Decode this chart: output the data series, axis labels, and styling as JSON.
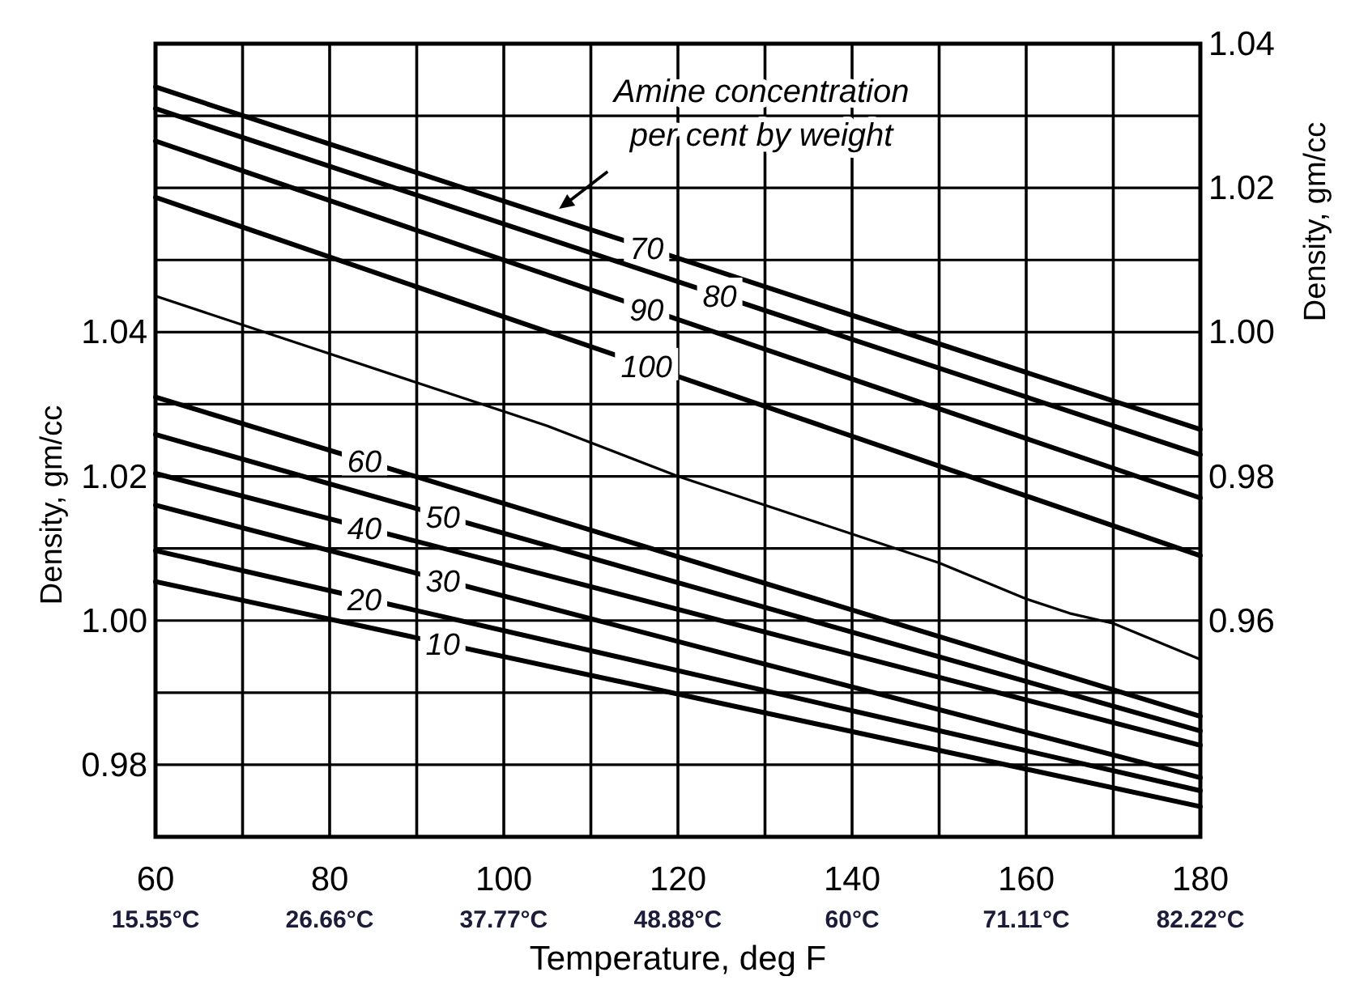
{
  "chart_data": {
    "type": "line",
    "xlabel": "Temperature, deg F",
    "ylabel": "Density, gm/cc",
    "y2label": "Density, gm/cc",
    "annotations": [
      "Amine concentration per cent by weight"
    ],
    "x": [
      60,
      180
    ],
    "series": [
      {
        "name": "70",
        "color": "#000000",
        "axis": "y2",
        "values": [
          1.034,
          0.9865
        ]
      },
      {
        "name": "80",
        "color": "#000000",
        "axis": "y2",
        "values": [
          1.031,
          0.983
        ]
      },
      {
        "name": "90",
        "color": "#000000",
        "axis": "y2",
        "values": [
          1.0265,
          0.977
        ]
      },
      {
        "name": "100",
        "color": "#000000",
        "axis": "y2",
        "values": [
          1.0187,
          0.969
        ]
      },
      {
        "color": "#000000",
        "x": [
          60,
          75,
          90,
          105,
          120,
          135,
          150,
          160,
          165,
          170,
          180
        ],
        "values": [
          1.045,
          1.039,
          1.033,
          1.027,
          1.02,
          1.014,
          1.008,
          1.003,
          1.001,
          0.9996,
          0.9946
        ]
      },
      {
        "name": "60",
        "color": "#000000",
        "values": [
          1.031,
          0.9867
        ]
      },
      {
        "name": "50",
        "color": "#000000",
        "values": [
          1.0258,
          0.9847
        ]
      },
      {
        "name": "40",
        "color": "#000000",
        "values": [
          1.0204,
          0.9827
        ]
      },
      {
        "name": "30",
        "color": "#000000",
        "values": [
          1.016,
          0.9782
        ]
      },
      {
        "name": "20",
        "color": "#000000",
        "values": [
          1.0097,
          0.9764
        ]
      },
      {
        "name": "10",
        "color": "#000000",
        "values": [
          1.0054,
          0.9742
        ]
      }
    ],
    "xlim": [
      60,
      180
    ],
    "xticks": [
      60,
      {
        "value": 70,
        "label": null
      },
      80,
      {
        "value": 90,
        "label": null
      },
      100,
      {
        "value": 110,
        "label": null
      },
      120,
      {
        "value": 130,
        "label": null
      },
      140,
      {
        "value": 150,
        "label": null
      },
      160,
      {
        "value": 170,
        "label": null
      },
      180
    ],
    "ylim": [
      0.97,
      1.08
    ],
    "yticks": [
      {
        "value": 0.98,
        "label": "0.98"
      },
      {
        "value": 0.99,
        "label": null
      },
      {
        "value": 1.0,
        "label": "1.00"
      },
      {
        "value": 1.01,
        "label": null
      },
      {
        "value": 1.02,
        "label": "1.02"
      },
      {
        "value": 1.03,
        "label": null
      },
      {
        "value": 1.04,
        "label": "1.04"
      },
      {
        "value": 1.05,
        "label": null
      },
      {
        "value": 1.06,
        "label": null
      },
      {
        "value": 1.07,
        "label": null
      }
    ],
    "y2lim": [
      0.93,
      1.04
    ],
    "y2ticks": [
      {
        "value": 0.96,
        "label": "0.96"
      },
      {
        "value": 0.98,
        "label": "0.98"
      },
      {
        "value": 1.0,
        "label": "1.00"
      },
      {
        "value": 1.02,
        "label": "1.02"
      },
      {
        "value": 1.04,
        "label": "1.04"
      }
    ],
    "x2lim": [
      15.55,
      82.22
    ],
    "x2ticks": [
      {
        "value": 15.55,
        "label": "15.55°C"
      },
      {
        "value": 26.66,
        "label": "26.66°C"
      },
      {
        "value": 37.77,
        "label": "37.77°C"
      },
      {
        "value": 48.88,
        "label": "48.88°C"
      },
      {
        "value": 60,
        "label": "60°C"
      },
      {
        "value": 71.11,
        "label": "71.11°C"
      },
      {
        "value": 82.22,
        "label": "82.22°C"
      }
    ],
    "grid": true,
    "legend": false,
    "marker": "none",
    "line_style": "solid"
  }
}
